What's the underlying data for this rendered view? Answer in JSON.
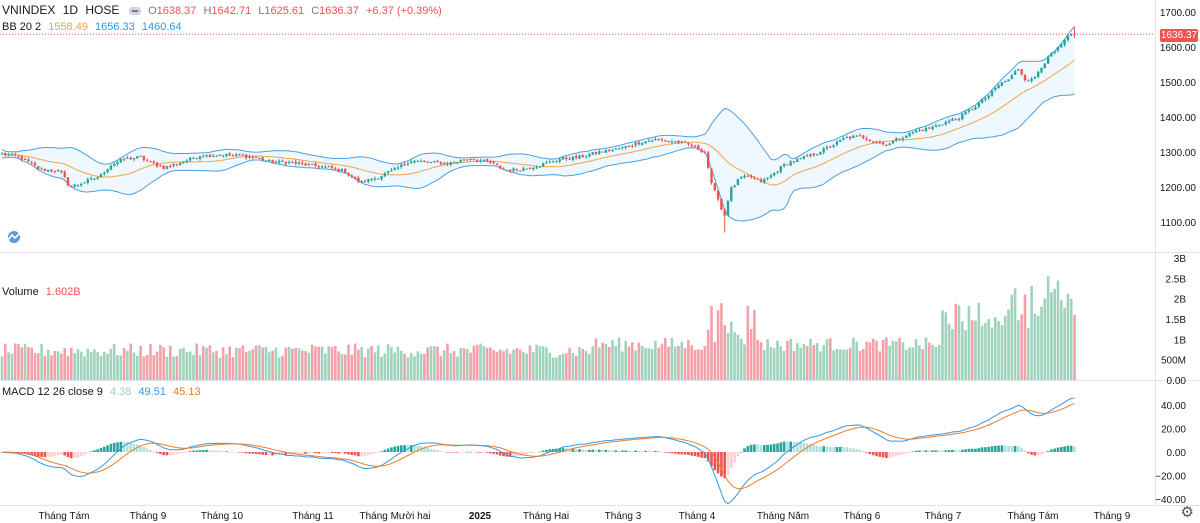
{
  "header": {
    "symbol": "VNINDEX",
    "interval": "1D",
    "exchange": "HOSE",
    "open_label": "O",
    "open": "1638.37",
    "high_label": "H",
    "high": "1642.71",
    "low_label": "L",
    "low": "1625.61",
    "close_label": "C",
    "close": "1636.37",
    "change": "+6.37 (+0.39%)"
  },
  "bb_legend": {
    "label": "BB 20 2",
    "basis": "1558.49",
    "upper": "1656.33",
    "lower": "1460.64"
  },
  "volume_legend": {
    "label": "Volume",
    "value": "1.602B"
  },
  "macd_legend": {
    "label": "MACD 12 26 close 9",
    "histogram": "4.38",
    "macd": "49.51",
    "signal": "45.13"
  },
  "last_price_tag": "1636.37",
  "colors": {
    "up": "#26a69a",
    "down": "#ef5350",
    "vol_up": "#9fd3bd",
    "vol_down": "#f2a1a8",
    "bb_band": "#4a9fe3",
    "bb_basis": "#f2a34a",
    "macd_line": "#2f9ae8",
    "signal_line": "#f07c26",
    "hist_up_strong": "#26a69a",
    "hist_up_weak": "#b2dfdb",
    "hist_down_strong": "#ef5350",
    "hist_down_weak": "#ffcdd2"
  },
  "chart_data": [
    {
      "type": "candlestick",
      "title": "VNINDEX 1D HOSE",
      "ylim": [
        1050,
        1720
      ],
      "y_ticks": [
        "1700.00",
        "1600.00",
        "1500.00",
        "1400.00",
        "1300.00",
        "1200.00",
        "1100.00"
      ],
      "x_tick_labels": [
        "Tháng Tám",
        "Tháng 9",
        "Tháng 10",
        "Tháng 11",
        "Tháng Mười hai",
        "2025",
        "Tháng Hai",
        "Tháng 3",
        "Tháng 4",
        "Tháng Năm",
        "Tháng 6",
        "Tháng 7",
        "Tháng Tám",
        "Tháng 9"
      ],
      "x_tick_positions": [
        64,
        148,
        222,
        313,
        395,
        480,
        546,
        623,
        697,
        783,
        862,
        943,
        1033,
        1112
      ],
      "bollinger": {
        "period": 20,
        "stddev": 2,
        "basis": 1558.49,
        "upper": 1656.33,
        "lower": 1460.64
      },
      "close_anchors": [
        [
          0,
          1295
        ],
        [
          20,
          1285
        ],
        [
          40,
          1250
        ],
        [
          60,
          1245
        ],
        [
          70,
          1200
        ],
        [
          85,
          1215
        ],
        [
          100,
          1230
        ],
        [
          110,
          1262
        ],
        [
          125,
          1280
        ],
        [
          140,
          1285
        ],
        [
          150,
          1270
        ],
        [
          165,
          1255
        ],
        [
          180,
          1270
        ],
        [
          200,
          1290
        ],
        [
          220,
          1292
        ],
        [
          240,
          1290
        ],
        [
          255,
          1285
        ],
        [
          270,
          1272
        ],
        [
          290,
          1270
        ],
        [
          310,
          1262
        ],
        [
          330,
          1255
        ],
        [
          345,
          1245
        ],
        [
          360,
          1212
        ],
        [
          375,
          1225
        ],
        [
          395,
          1250
        ],
        [
          410,
          1275
        ],
        [
          430,
          1270
        ],
        [
          450,
          1268
        ],
        [
          470,
          1282
        ],
        [
          490,
          1270
        ],
        [
          505,
          1248
        ],
        [
          520,
          1250
        ],
        [
          540,
          1262
        ],
        [
          560,
          1280
        ],
        [
          580,
          1285
        ],
        [
          600,
          1300
        ],
        [
          620,
          1310
        ],
        [
          640,
          1328
        ],
        [
          655,
          1335
        ],
        [
          675,
          1330
        ],
        [
          690,
          1320
        ],
        [
          705,
          1300
        ],
        [
          712,
          1200
        ],
        [
          718,
          1170
        ],
        [
          724,
          1110
        ],
        [
          730,
          1190
        ],
        [
          740,
          1225
        ],
        [
          750,
          1230
        ],
        [
          760,
          1215
        ],
        [
          770,
          1230
        ],
        [
          785,
          1265
        ],
        [
          800,
          1280
        ],
        [
          815,
          1295
        ],
        [
          830,
          1315
        ],
        [
          845,
          1340
        ],
        [
          860,
          1345
        ],
        [
          875,
          1330
        ],
        [
          885,
          1320
        ],
        [
          900,
          1340
        ],
        [
          915,
          1360
        ],
        [
          930,
          1368
        ],
        [
          945,
          1385
        ],
        [
          960,
          1400
        ],
        [
          975,
          1430
        ],
        [
          990,
          1465
        ],
        [
          1000,
          1495
        ],
        [
          1010,
          1510
        ],
        [
          1018,
          1540
        ],
        [
          1025,
          1510
        ],
        [
          1033,
          1505
        ],
        [
          1040,
          1540
        ],
        [
          1050,
          1575
        ],
        [
          1060,
          1600
        ],
        [
          1068,
          1630
        ],
        [
          1075,
          1636
        ]
      ],
      "low_spike": [
        724,
        1070
      ]
    },
    {
      "type": "bar",
      "title": "Volume",
      "y_ticks": [
        "3B",
        "2.5B",
        "2B",
        "1.5B",
        "1B",
        "500M",
        "0.00"
      ],
      "ylim": [
        0,
        3000000000
      ],
      "value_label": "1.602B"
    },
    {
      "type": "line",
      "title": "MACD 12 26 close 9",
      "ylim": [
        -45,
        60
      ],
      "y_ticks": [
        "40.00",
        "20.00",
        "0.00",
        "−20.00",
        "−40.00"
      ],
      "histogram": 4.38,
      "macd": 49.51,
      "signal": 45.13
    }
  ]
}
